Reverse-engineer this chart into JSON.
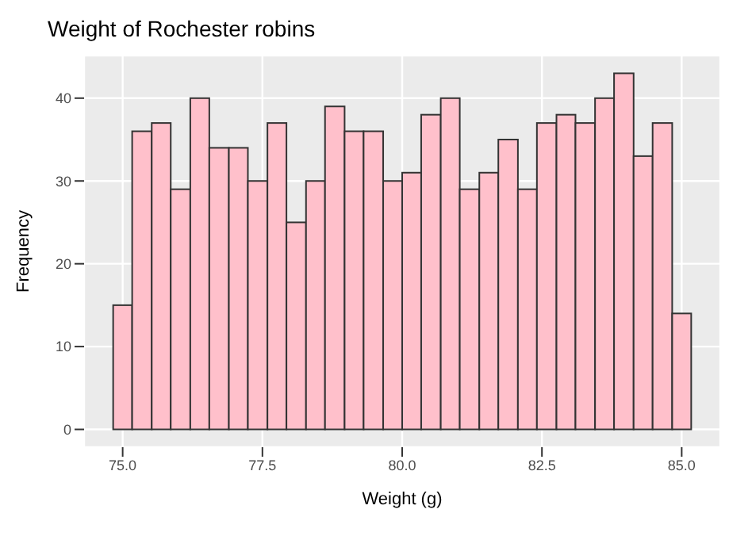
{
  "chart_data": {
    "type": "histogram",
    "title": "Weight of Rochester robins",
    "xlabel": "Weight (g)",
    "ylabel": "Frequency",
    "bins": [
      74.83,
      75.17,
      75.52,
      75.86,
      76.21,
      76.55,
      76.9,
      77.24,
      77.59,
      77.93,
      78.28,
      78.62,
      78.97,
      79.31,
      79.66,
      80.0,
      80.34,
      80.69,
      81.03,
      81.38,
      81.72,
      82.07,
      82.41,
      82.76,
      83.1,
      83.45,
      83.79,
      84.14,
      84.48,
      84.83,
      85.17
    ],
    "values": [
      15,
      36,
      37,
      29,
      40,
      34,
      34,
      30,
      37,
      25,
      30,
      39,
      36,
      36,
      30,
      31,
      38,
      40,
      29,
      31,
      35,
      29,
      37,
      38,
      37,
      40,
      43,
      33,
      37,
      14
    ],
    "color": "#ffc0cb",
    "xlim": [
      74.31,
      85.69
    ],
    "xticks": [
      {
        "value": 75,
        "label": "75.0"
      },
      77.5,
      {
        "value": 80,
        "label": "80.0"
      },
      82.5,
      {
        "value": 85,
        "label": "85.0"
      }
    ],
    "ylim": [
      -2.15,
      45.15
    ],
    "yticks": [
      0,
      10,
      20,
      30,
      40
    ],
    "grid": true
  }
}
